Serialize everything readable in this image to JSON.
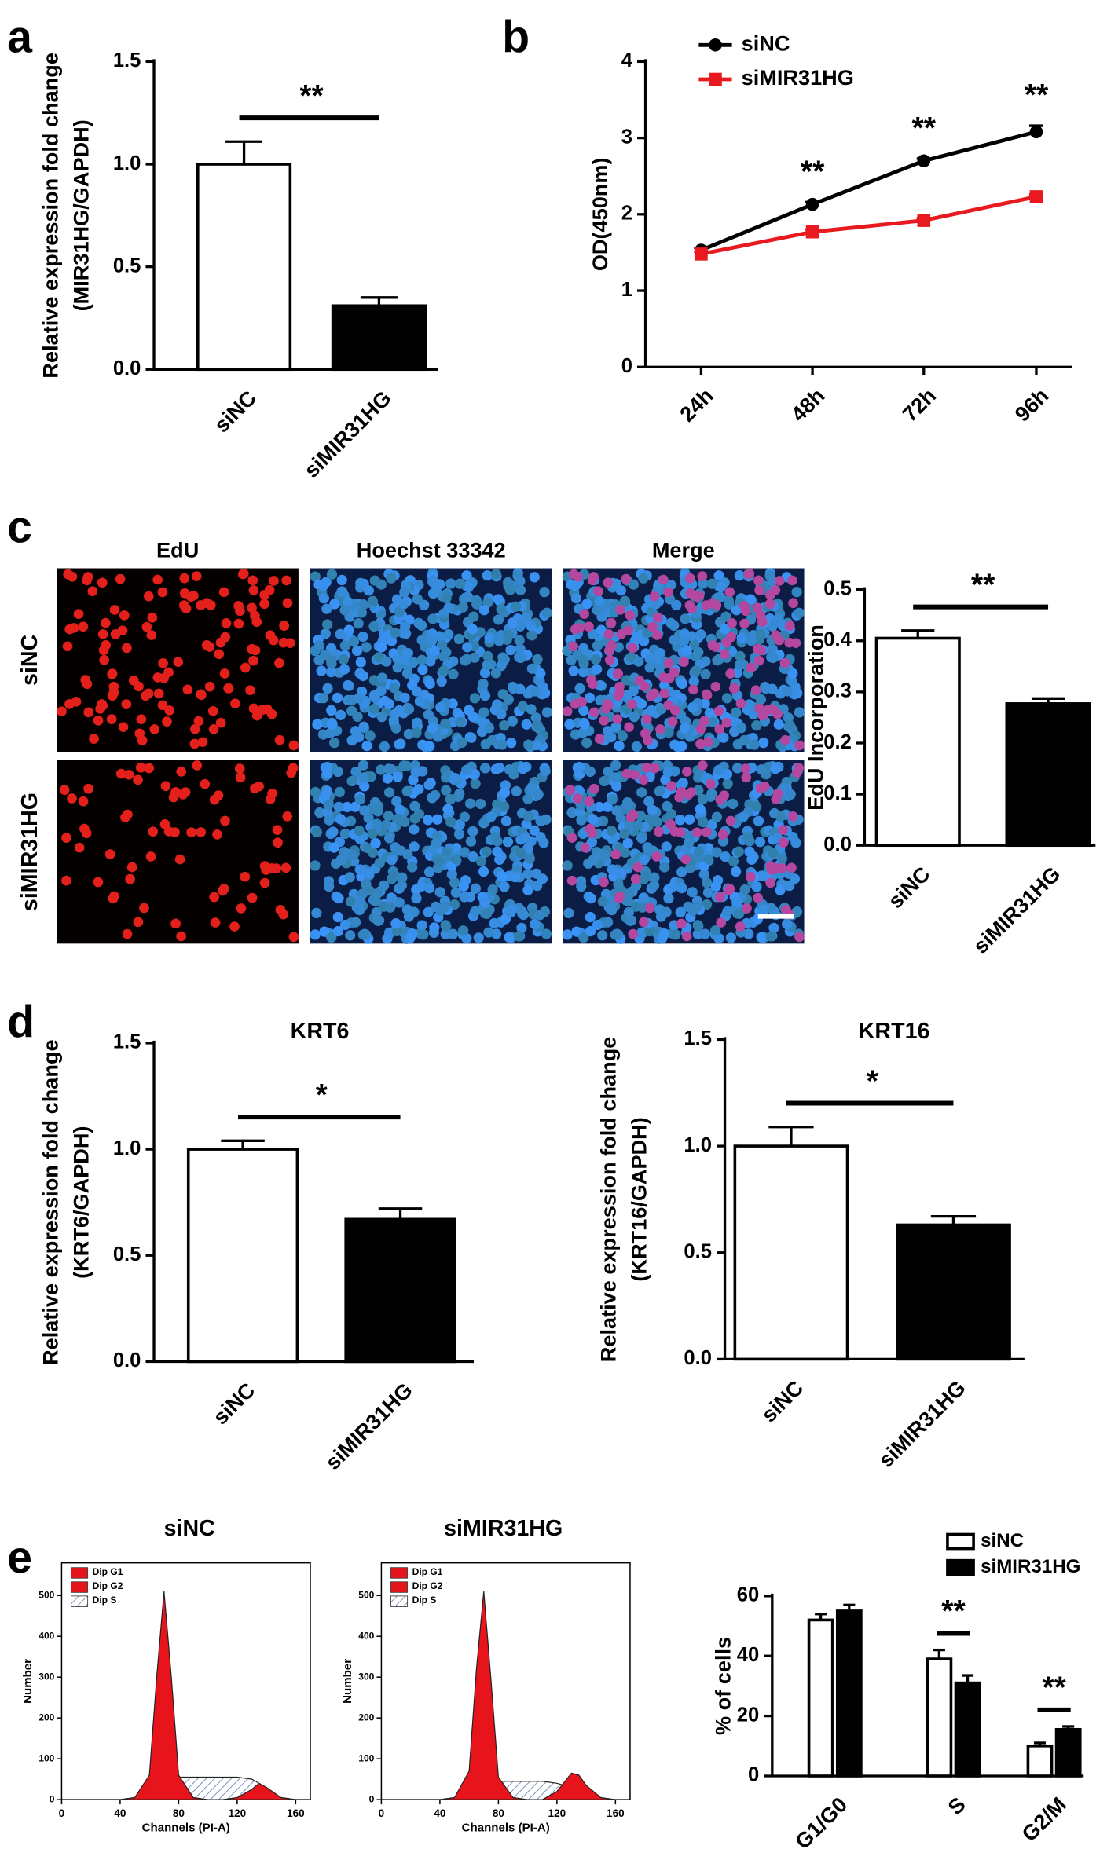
{
  "micrographs": {
    "panel": "c",
    "columns": [
      "EdU",
      "Hoechst 33342",
      "Merge"
    ],
    "rows": [
      "siNC",
      "siMIR31HG"
    ]
  },
  "chart_data": [
    {
      "type": "bar",
      "panel": "a",
      "ylabel": [
        "Relative expression fold change",
        "(MIR31HG/GAPDH)"
      ],
      "categories": [
        "siNC",
        "siMIR31HG"
      ],
      "values": [
        1.0,
        0.31
      ],
      "errors": [
        0.11,
        0.04
      ],
      "colors": [
        "#ffffff",
        "#000000"
      ],
      "ylim": [
        0,
        1.5
      ],
      "yticks": [
        {
          "value": 0,
          "label": "0.0"
        },
        0.5,
        {
          "value": 1,
          "label": "1.0"
        },
        1.5
      ],
      "annotation": "**"
    },
    {
      "type": "line",
      "panel": "b",
      "ylabel": [
        "OD(450nm)"
      ],
      "categories": [
        "24h",
        "48h",
        "72h",
        "96h"
      ],
      "series": [
        {
          "name": "siNC",
          "color": "#000000",
          "marker": "circle",
          "values": [
            1.53,
            2.13,
            2.7,
            3.08
          ],
          "errors": [
            0.03,
            0.03,
            0.03,
            0.08
          ]
        },
        {
          "name": "siMIR31HG",
          "color": "#e8191f",
          "marker": "square",
          "values": [
            1.48,
            1.77,
            1.92,
            2.23
          ],
          "errors": [
            0.03,
            0.03,
            0.03,
            0.03
          ]
        }
      ],
      "annotations": [
        null,
        "**",
        "**",
        "**"
      ],
      "ylim": [
        0,
        4
      ],
      "yticks": [
        0,
        1,
        2,
        3,
        4
      ],
      "legend": "top-left"
    },
    {
      "type": "bar",
      "ylabel": [
        "EdU Incorporation"
      ],
      "categories": [
        "siNC",
        "siMIR31HG"
      ],
      "values": [
        0.405,
        0.277
      ],
      "errors": [
        0.015,
        0.01
      ],
      "colors": [
        "#ffffff",
        "#000000"
      ],
      "ylim": [
        0,
        0.5
      ],
      "yticks": [
        {
          "value": 0,
          "label": "0.0"
        },
        0.1,
        0.2,
        0.3,
        0.4,
        0.5
      ],
      "annotation": "**"
    },
    {
      "type": "bar",
      "panel": "d",
      "title": "KRT6",
      "ylabel": [
        "Relative expression fold change",
        "(KRT6/GAPDH)"
      ],
      "categories": [
        "siNC",
        "siMIR31HG"
      ],
      "values": [
        1.0,
        0.67
      ],
      "errors": [
        0.04,
        0.05
      ],
      "colors": [
        "#ffffff",
        "#000000"
      ],
      "ylim": [
        0,
        1.5
      ],
      "yticks": [
        {
          "value": 0,
          "label": "0.0"
        },
        0.5,
        {
          "value": 1,
          "label": "1.0"
        },
        1.5
      ],
      "annotation": "*"
    },
    {
      "type": "bar",
      "title": "KRT16",
      "ylabel": [
        "Relative expression fold change",
        "(KRT16/GAPDH)"
      ],
      "categories": [
        "siNC",
        "siMIR31HG"
      ],
      "values": [
        1.0,
        0.63
      ],
      "errors": [
        0.09,
        0.04
      ],
      "colors": [
        "#ffffff",
        "#000000"
      ],
      "ylim": [
        0,
        1.5
      ],
      "yticks": [
        {
          "value": 0,
          "label": "0.0"
        },
        0.5,
        {
          "value": 1,
          "label": "1.0"
        },
        1.5
      ],
      "annotation": "*"
    },
    {
      "type": "flow",
      "panel": "e",
      "title": "siNC",
      "xlabel": "Channels (PI-A)",
      "ylabel": [
        "Number"
      ],
      "x": [
        40,
        50,
        60,
        65,
        70,
        75,
        80,
        90,
        100,
        110,
        120,
        130,
        135,
        140,
        150,
        160
      ],
      "series": [
        {
          "name": "Dip G1",
          "color": "#e8141c",
          "values": [
            0,
            5,
            60,
            300,
            510,
            300,
            60,
            5,
            0,
            0,
            0,
            0,
            0,
            0,
            0,
            0
          ]
        },
        {
          "name": "Dip G2",
          "color": "#e8141c",
          "values": [
            0,
            0,
            0,
            0,
            0,
            0,
            0,
            0,
            0,
            0,
            5,
            25,
            40,
            30,
            5,
            0
          ]
        },
        {
          "name": "Dip S",
          "color": "#6f86b3",
          "fill": "hatch",
          "values": [
            0,
            5,
            15,
            25,
            40,
            50,
            55,
            55,
            55,
            55,
            55,
            50,
            40,
            25,
            5,
            0
          ]
        }
      ],
      "xlim": [
        0,
        170
      ],
      "ylim": [
        0,
        580
      ],
      "xticks": [
        0,
        40,
        80,
        120,
        160
      ],
      "yticks": [
        0,
        100,
        200,
        300,
        400,
        500
      ]
    },
    {
      "type": "flow",
      "title": "siMIR31HG",
      "xlabel": "Channels (PI-A)",
      "ylabel": [
        "Number"
      ],
      "x": [
        40,
        50,
        60,
        65,
        70,
        75,
        80,
        90,
        100,
        110,
        120,
        130,
        135,
        140,
        150,
        160
      ],
      "series": [
        {
          "name": "Dip G1",
          "color": "#e8141c",
          "values": [
            0,
            5,
            70,
            320,
            510,
            290,
            55,
            5,
            0,
            0,
            0,
            0,
            0,
            0,
            0,
            0
          ]
        },
        {
          "name": "Dip G2",
          "color": "#e8141c",
          "values": [
            0,
            0,
            0,
            0,
            0,
            0,
            0,
            0,
            0,
            0,
            20,
            65,
            60,
            35,
            5,
            0
          ]
        },
        {
          "name": "Dip S",
          "color": "#6f86b3",
          "fill": "hatch",
          "values": [
            0,
            5,
            12,
            20,
            32,
            40,
            45,
            45,
            45,
            45,
            40,
            30,
            20,
            12,
            3,
            0
          ]
        }
      ],
      "xlim": [
        0,
        170
      ],
      "ylim": [
        0,
        580
      ],
      "xticks": [
        0,
        40,
        80,
        120,
        160
      ],
      "yticks": [
        0,
        100,
        200,
        300,
        400,
        500
      ]
    },
    {
      "type": "grouped-bar",
      "ylabel": [
        "% of cells"
      ],
      "categories": [
        "G1/G0",
        "S",
        "G2/M"
      ],
      "series": [
        {
          "name": "siNC",
          "color": "#ffffff",
          "values": [
            52,
            39,
            10
          ],
          "errors": [
            2,
            3,
            1
          ]
        },
        {
          "name": "siMIR31HG",
          "color": "#000000",
          "values": [
            55,
            31,
            15.5
          ],
          "errors": [
            2,
            2.5,
            1
          ]
        }
      ],
      "annotations": [
        null,
        "**",
        "**"
      ],
      "ylim": [
        0,
        60
      ],
      "yticks": [
        0,
        20,
        40,
        60
      ],
      "legend": "top-right"
    }
  ]
}
